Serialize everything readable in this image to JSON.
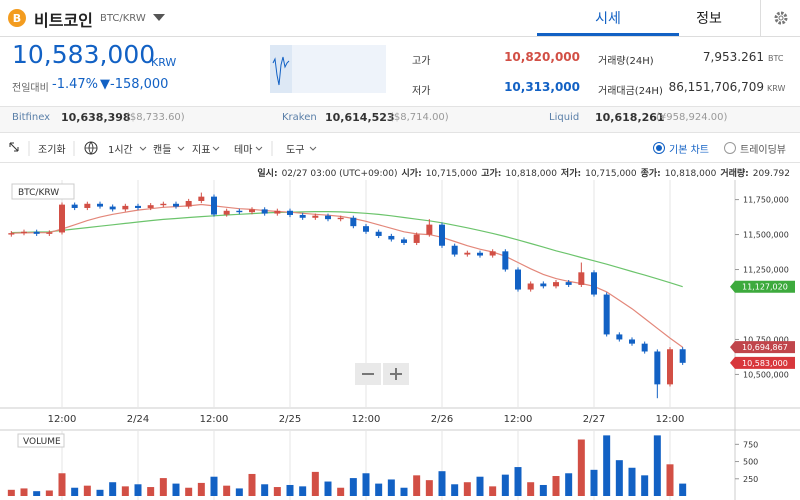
{
  "header": {
    "title": "비트코인",
    "pair": "BTC/KRW",
    "tabs": [
      "시세",
      "정보"
    ]
  },
  "price": {
    "value": "10,583,000",
    "unit": "KRW",
    "change_label": "전일대비",
    "change_pct": "-1.47%",
    "change_amount": "▼-158,000"
  },
  "stats": [
    {
      "label": "고가",
      "value": "10,820,000"
    },
    {
      "label": "저가",
      "value": "10,313,000"
    },
    {
      "label": "거래량(24H)",
      "value": "7,953.261",
      "unit": "BTC"
    },
    {
      "label": "거래대금(24H)",
      "value": "86,151,706,709",
      "unit": "KRW"
    }
  ],
  "exchanges": [
    {
      "name": "Bitfinex",
      "price": "10,638,398",
      "foreign": "($8,733.60)"
    },
    {
      "name": "Kraken",
      "price": "10,614,523",
      "foreign": "($8,714.00)"
    },
    {
      "name": "Liquid",
      "price": "10,618,261",
      "foreign": "(¥958,924.00)"
    }
  ],
  "toolbar": {
    "items": [
      "조기화",
      "1시간",
      "캔들",
      "지표",
      "테마",
      "도구"
    ],
    "modes": [
      "기본 차트",
      "트레이딩뷰"
    ]
  },
  "info": [
    {
      "label": "일시:",
      "value": "02/27 03:00 (UTC+09:00)"
    },
    {
      "label": "시가:",
      "value": "10,715,000"
    },
    {
      "label": "고가:",
      "value": "10,818,000"
    },
    {
      "label": "저가:",
      "value": "10,715,000"
    },
    {
      "label": "종가:",
      "value": "10,818,000"
    },
    {
      "label": "거래량:",
      "value": "209.792"
    }
  ],
  "chart_data": [
    {
      "type": "candlestick",
      "label": "BTC/KRW",
      "up_color": "#d24f45",
      "down_color": "#1261c4",
      "categories": [
        null,
        null,
        null,
        null,
        "12:00",
        null,
        null,
        null,
        null,
        null,
        "2/24",
        null,
        null,
        null,
        null,
        null,
        "12:00",
        null,
        null,
        null,
        null,
        null,
        "2/25",
        null,
        null,
        null,
        null,
        null,
        "12:00",
        null,
        null,
        null,
        null,
        null,
        "2/26",
        null,
        null,
        null,
        null,
        null,
        "12:00",
        null,
        null,
        null,
        null,
        null,
        "2/27",
        null,
        null,
        null,
        null,
        null,
        "12:00",
        null
      ],
      "open": [
        11500000,
        11510000,
        11520000,
        11505000,
        11515000,
        11714000,
        11690000,
        11720000,
        11700000,
        11680000,
        11705000,
        11690000,
        11710000,
        11720000,
        11700000,
        11740000,
        11771000,
        11643000,
        11670000,
        11660000,
        11680000,
        11650000,
        11670000,
        11640000,
        11620000,
        11635000,
        11610000,
        11620000,
        11560000,
        11520000,
        11490000,
        11465000,
        11440000,
        11500000,
        11571000,
        11420000,
        11357000,
        11370000,
        11350000,
        11380000,
        11250000,
        11107000,
        11150000,
        11130000,
        11160000,
        11140000,
        11230000,
        11071000,
        10786000,
        10750000,
        10720000,
        10664000,
        10429000,
        10680000
      ],
      "high": [
        11525000,
        11535000,
        11535000,
        11530000,
        11729000,
        11729000,
        11735000,
        11735000,
        11715000,
        11720000,
        11720000,
        11725000,
        11735000,
        11735000,
        11755000,
        11800000,
        11786000,
        11685000,
        11685000,
        11695000,
        11695000,
        11685000,
        11685000,
        11655000,
        11650000,
        11650000,
        11635000,
        11635000,
        11575000,
        11535000,
        11505000,
        11480000,
        11515000,
        11610000,
        11586000,
        11435000,
        11385000,
        11385000,
        11395000,
        11395000,
        11265000,
        11165000,
        11165000,
        11175000,
        11175000,
        11300000,
        11245000,
        11086000,
        10801000,
        10765000,
        10735000,
        10679000,
        10695000,
        10695000
      ],
      "low": [
        11485000,
        11495000,
        11490000,
        11490000,
        11500000,
        11675000,
        11675000,
        11685000,
        11665000,
        11665000,
        11675000,
        11675000,
        11695000,
        11685000,
        11685000,
        11725000,
        11628000,
        11628000,
        11645000,
        11645000,
        11635000,
        11635000,
        11625000,
        11605000,
        11605000,
        11595000,
        11595000,
        11545000,
        11505000,
        11475000,
        11450000,
        11425000,
        11425000,
        11485000,
        11405000,
        11342000,
        11342000,
        11335000,
        11335000,
        11235000,
        11092000,
        11092000,
        11115000,
        11115000,
        11125000,
        11125000,
        11056000,
        10771000,
        10735000,
        10705000,
        10649000,
        10330000,
        10414000,
        10568000
      ],
      "close": [
        11510000,
        11520000,
        11505000,
        11515000,
        11714000,
        11690000,
        11720000,
        11700000,
        11680000,
        11705000,
        11690000,
        11710000,
        11720000,
        11700000,
        11740000,
        11771000,
        11643000,
        11670000,
        11660000,
        11680000,
        11650000,
        11670000,
        11640000,
        11620000,
        11635000,
        11610000,
        11620000,
        11560000,
        11520000,
        11490000,
        11465000,
        11440000,
        11500000,
        11571000,
        11420000,
        11357000,
        11370000,
        11350000,
        11380000,
        11250000,
        11107000,
        11150000,
        11130000,
        11160000,
        11140000,
        11230000,
        11071000,
        10786000,
        10750000,
        10720000,
        10664000,
        10429000,
        10680000,
        10583000
      ],
      "moving_averages": [
        {
          "color": "#6cc46c",
          "values": [
            11514000,
            11516000,
            11518000,
            11520000,
            11530000,
            11540000,
            11550000,
            11560000,
            11570000,
            11580000,
            11590000,
            11600000,
            11608000,
            11615000,
            11622000,
            11628000,
            11634000,
            11640000,
            11645000,
            11650000,
            11655000,
            11658000,
            11660000,
            11662000,
            11664000,
            11664000,
            11662000,
            11658000,
            11652000,
            11644000,
            11634000,
            11622000,
            11610000,
            11598000,
            11584000,
            11566000,
            11548000,
            11528000,
            11508000,
            11486000,
            11462000,
            11436000,
            11410000,
            11384000,
            11360000,
            11336000,
            11312000,
            11288000,
            11262000,
            11236000,
            11210000,
            11184000,
            11156000,
            11127020
          ]
        },
        {
          "color": "#e3877a",
          "values": [
            11510000,
            11512000,
            11513000,
            11514000,
            11540000,
            11570000,
            11600000,
            11625000,
            11645000,
            11660000,
            11675000,
            11685000,
            11695000,
            11700000,
            11705000,
            11715000,
            11705000,
            11695000,
            11685000,
            11680000,
            11672000,
            11665000,
            11660000,
            11652000,
            11645000,
            11638000,
            11630000,
            11615000,
            11595000,
            11570000,
            11545000,
            11520000,
            11505000,
            11500000,
            11480000,
            11450000,
            11420000,
            11395000,
            11375000,
            11345000,
            11300000,
            11255000,
            11215000,
            11185000,
            11165000,
            11150000,
            11130000,
            11090000,
            11030000,
            10970000,
            10900000,
            10830000,
            10760000,
            10694867
          ]
        }
      ],
      "price_tags": [
        {
          "value": 11127020,
          "label": "11,127,020",
          "color": "#3daa3d"
        },
        {
          "value": 10694867,
          "label": "10,694,867",
          "color": "#c0454b"
        },
        {
          "value": 10583000,
          "label": "10,583,000",
          "color": "#d8373c"
        }
      ],
      "ylim": [
        10260000,
        11890000
      ],
      "yticks": [
        {
          "value": 11750000,
          "label": "11,750,000"
        },
        {
          "value": 11500000,
          "label": "11,500,000"
        },
        {
          "value": 11250000,
          "label": "11,250,000"
        },
        {
          "value": 10750000,
          "label": "10,750,000"
        },
        {
          "value": 10500000,
          "label": "10,500,000"
        }
      ]
    },
    {
      "type": "bar",
      "label": "VOLUME",
      "values": [
        90,
        110,
        70,
        80,
        330,
        120,
        150,
        90,
        200,
        140,
        170,
        130,
        260,
        180,
        120,
        190,
        280,
        150,
        110,
        320,
        170,
        130,
        160,
        140,
        350,
        210,
        120,
        260,
        330,
        180,
        240,
        120,
        300,
        230,
        360,
        170,
        200,
        280,
        140,
        310,
        420,
        200,
        160,
        290,
        330,
        820,
        380,
        880,
        520,
        410,
        300,
        880,
        460,
        180
      ],
      "ylim": [
        0,
        900
      ],
      "yticks": [
        250,
        500,
        750
      ]
    }
  ]
}
